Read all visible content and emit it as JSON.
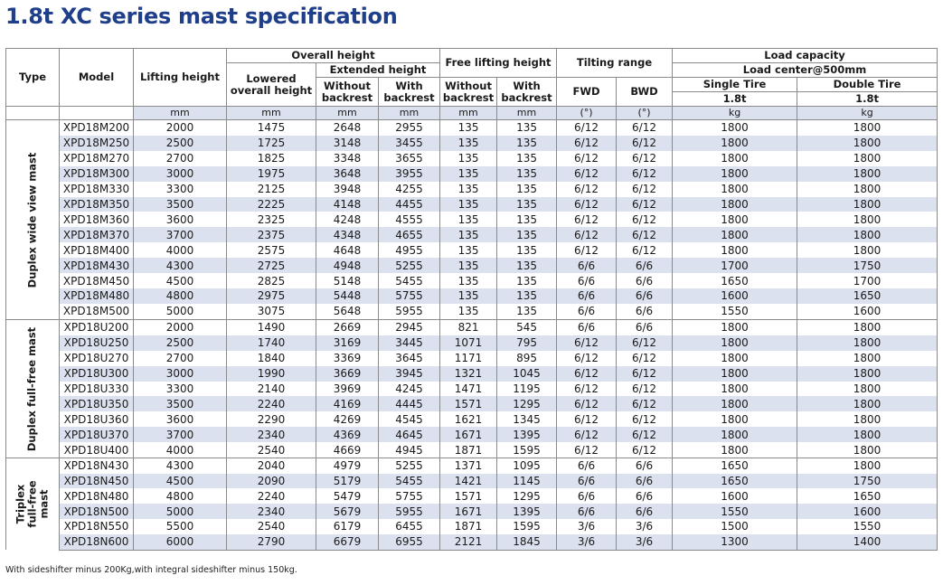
{
  "title": "1.8t XC series mast specification",
  "headers": {
    "type": "Type",
    "model": "Model",
    "lifting_height": "Lifting height",
    "overall_height": "Overall height",
    "lowered_overall_height": "Lowered overall height",
    "extended_height": "Extended height",
    "without_backrest": "Without backrest",
    "with_backrest": "With backrest",
    "free_lifting_height": "Free lifting height",
    "tilting_range": "Tilting range",
    "fwd": "FWD",
    "bwd": "BWD",
    "load_capacity": "Load capacity",
    "load_center": "Load center@500mm",
    "single_tire": "Single Tire",
    "double_tire": "Double Tire",
    "single_tire_rating": "1.8t",
    "double_tire_rating": "1.8t"
  },
  "units": [
    "mm",
    "mm",
    "mm",
    "mm",
    "mm",
    "mm",
    "(°)",
    "(°)",
    "kg",
    "kg"
  ],
  "groups": [
    {
      "label": "Duplex wide view mast",
      "rows": [
        [
          "XPD18M200",
          "2000",
          "1475",
          "2648",
          "2955",
          "135",
          "135",
          "6/12",
          "6/12",
          "1800",
          "1800"
        ],
        [
          "XPD18M250",
          "2500",
          "1725",
          "3148",
          "3455",
          "135",
          "135",
          "6/12",
          "6/12",
          "1800",
          "1800"
        ],
        [
          "XPD18M270",
          "2700",
          "1825",
          "3348",
          "3655",
          "135",
          "135",
          "6/12",
          "6/12",
          "1800",
          "1800"
        ],
        [
          "XPD18M300",
          "3000",
          "1975",
          "3648",
          "3955",
          "135",
          "135",
          "6/12",
          "6/12",
          "1800",
          "1800"
        ],
        [
          "XPD18M330",
          "3300",
          "2125",
          "3948",
          "4255",
          "135",
          "135",
          "6/12",
          "6/12",
          "1800",
          "1800"
        ],
        [
          "XPD18M350",
          "3500",
          "2225",
          "4148",
          "4455",
          "135",
          "135",
          "6/12",
          "6/12",
          "1800",
          "1800"
        ],
        [
          "XPD18M360",
          "3600",
          "2325",
          "4248",
          "4555",
          "135",
          "135",
          "6/12",
          "6/12",
          "1800",
          "1800"
        ],
        [
          "XPD18M370",
          "3700",
          "2375",
          "4348",
          "4655",
          "135",
          "135",
          "6/12",
          "6/12",
          "1800",
          "1800"
        ],
        [
          "XPD18M400",
          "4000",
          "2575",
          "4648",
          "4955",
          "135",
          "135",
          "6/12",
          "6/12",
          "1800",
          "1800"
        ],
        [
          "XPD18M430",
          "4300",
          "2725",
          "4948",
          "5255",
          "135",
          "135",
          "6/6",
          "6/6",
          "1700",
          "1750"
        ],
        [
          "XPD18M450",
          "4500",
          "2825",
          "5148",
          "5455",
          "135",
          "135",
          "6/6",
          "6/6",
          "1650",
          "1700"
        ],
        [
          "XPD18M480",
          "4800",
          "2975",
          "5448",
          "5755",
          "135",
          "135",
          "6/6",
          "6/6",
          "1600",
          "1650"
        ],
        [
          "XPD18M500",
          "5000",
          "3075",
          "5648",
          "5955",
          "135",
          "135",
          "6/6",
          "6/6",
          "1550",
          "1600"
        ]
      ]
    },
    {
      "label": "Duplex full-free mast",
      "rows": [
        [
          "XPD18U200",
          "2000",
          "1490",
          "2669",
          "2945",
          "821",
          "545",
          "6/6",
          "6/6",
          "1800",
          "1800"
        ],
        [
          "XPD18U250",
          "2500",
          "1740",
          "3169",
          "3445",
          "1071",
          "795",
          "6/12",
          "6/12",
          "1800",
          "1800"
        ],
        [
          "XPD18U270",
          "2700",
          "1840",
          "3369",
          "3645",
          "1171",
          "895",
          "6/12",
          "6/12",
          "1800",
          "1800"
        ],
        [
          "XPD18U300",
          "3000",
          "1990",
          "3669",
          "3945",
          "1321",
          "1045",
          "6/12",
          "6/12",
          "1800",
          "1800"
        ],
        [
          "XPD18U330",
          "3300",
          "2140",
          "3969",
          "4245",
          "1471",
          "1195",
          "6/12",
          "6/12",
          "1800",
          "1800"
        ],
        [
          "XPD18U350",
          "3500",
          "2240",
          "4169",
          "4445",
          "1571",
          "1295",
          "6/12",
          "6/12",
          "1800",
          "1800"
        ],
        [
          "XPD18U360",
          "3600",
          "2290",
          "4269",
          "4545",
          "1621",
          "1345",
          "6/12",
          "6/12",
          "1800",
          "1800"
        ],
        [
          "XPD18U370",
          "3700",
          "2340",
          "4369",
          "4645",
          "1671",
          "1395",
          "6/12",
          "6/12",
          "1800",
          "1800"
        ],
        [
          "XPD18U400",
          "4000",
          "2540",
          "4669",
          "4945",
          "1871",
          "1595",
          "6/12",
          "6/12",
          "1800",
          "1800"
        ]
      ]
    },
    {
      "label": "Triplex full-free mast",
      "rows": [
        [
          "XPD18N430",
          "4300",
          "2040",
          "4979",
          "5255",
          "1371",
          "1095",
          "6/6",
          "6/6",
          "1650",
          "1800"
        ],
        [
          "XPD18N450",
          "4500",
          "2090",
          "5179",
          "5455",
          "1421",
          "1145",
          "6/6",
          "6/6",
          "1650",
          "1750"
        ],
        [
          "XPD18N480",
          "4800",
          "2240",
          "5479",
          "5755",
          "1571",
          "1295",
          "6/6",
          "6/6",
          "1600",
          "1650"
        ],
        [
          "XPD18N500",
          "5000",
          "2340",
          "5679",
          "5955",
          "1671",
          "1395",
          "6/6",
          "6/6",
          "1550",
          "1600"
        ],
        [
          "XPD18N550",
          "5500",
          "2540",
          "6179",
          "6455",
          "1871",
          "1595",
          "3/6",
          "3/6",
          "1500",
          "1550"
        ],
        [
          "XPD18N600",
          "6000",
          "2790",
          "6679",
          "6955",
          "2121",
          "1845",
          "3/6",
          "3/6",
          "1300",
          "1400"
        ]
      ]
    }
  ],
  "note": "With sideshifter minus 200Kg,with integral sideshifter minus 150kg."
}
